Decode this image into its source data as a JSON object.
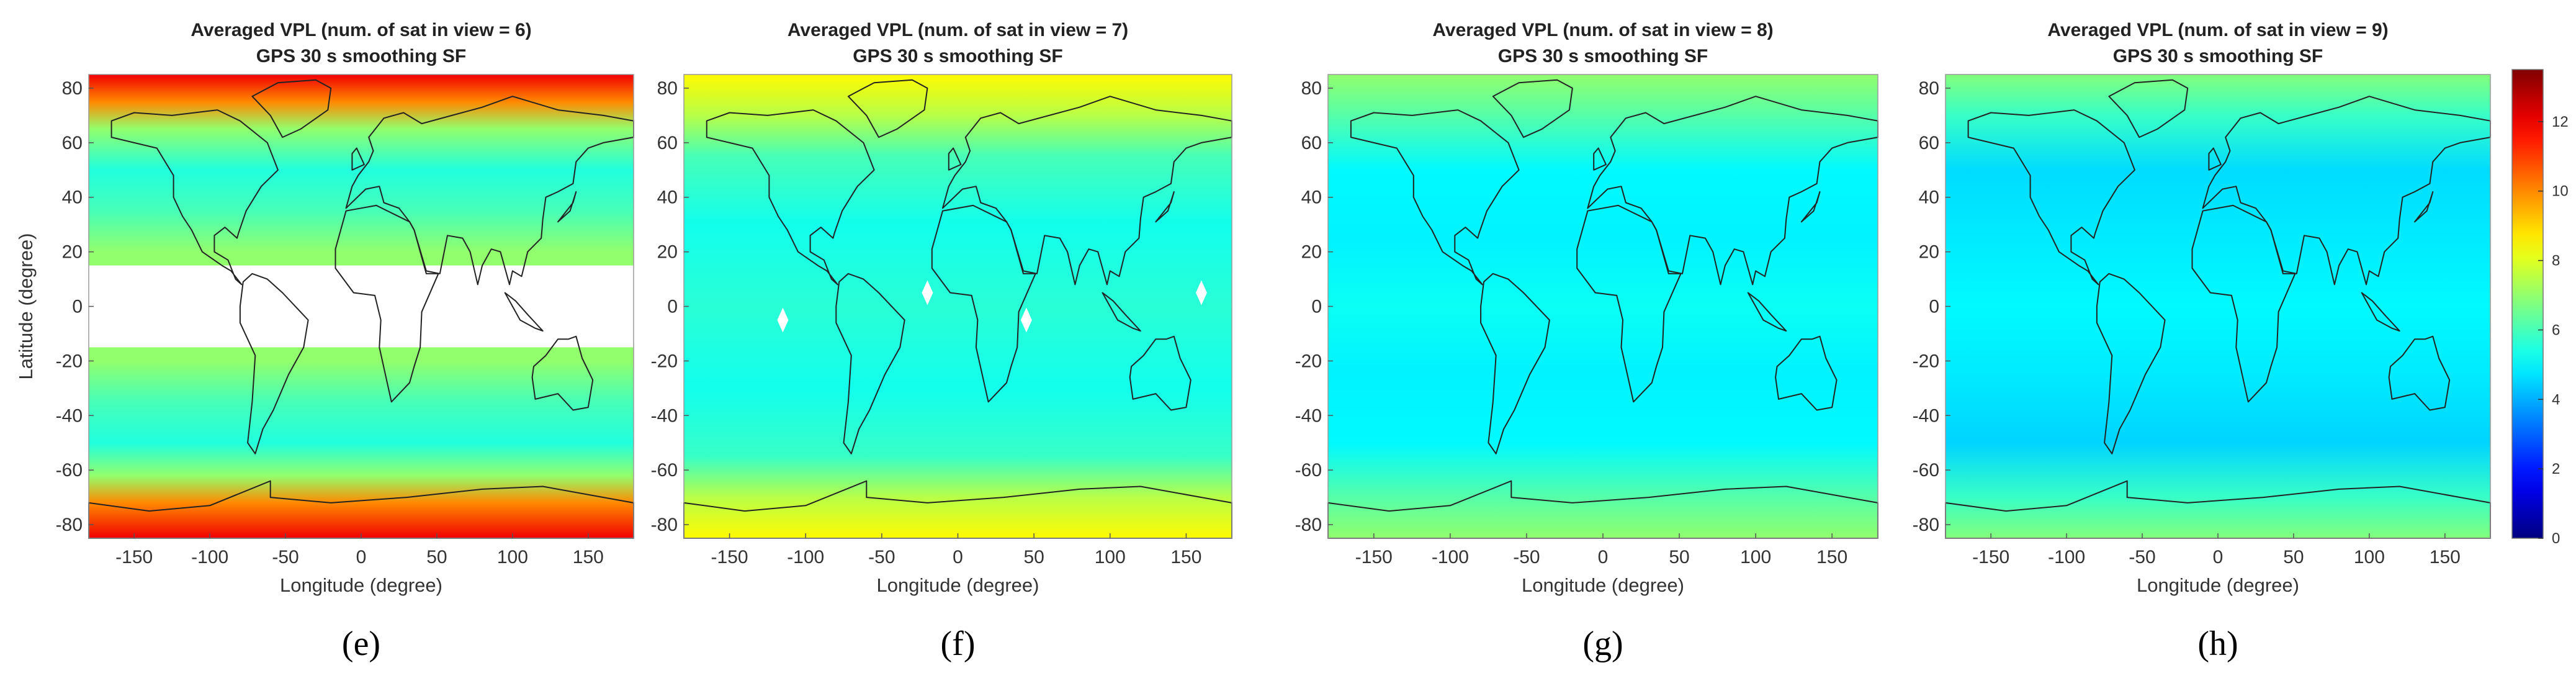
{
  "chart_data": [
    {
      "type": "heatmap",
      "panel_label": "(e)",
      "title": "Averaged VPL (num. of sat in view = 6)",
      "subtitle": "GPS 30 s smoothing SF",
      "xlabel": "Longitude (degree)",
      "ylabel": "Latitude (degree)",
      "xlim": [
        -180,
        180
      ],
      "ylim": [
        -85,
        85
      ],
      "x_ticks": [
        -150,
        -100,
        -50,
        0,
        50,
        100,
        150
      ],
      "y_ticks": [
        80,
        60,
        40,
        20,
        0,
        -20,
        -40,
        -60,
        -80
      ],
      "latitude_profile_vpl": [
        {
          "lat": 85,
          "vpl": 12
        },
        {
          "lat": 75,
          "vpl": 10
        },
        {
          "lat": 65,
          "vpl": 7
        },
        {
          "lat": 50,
          "vpl": 5.5
        },
        {
          "lat": 35,
          "vpl": 6
        },
        {
          "lat": 20,
          "vpl": 7
        },
        {
          "lat": -20,
          "vpl": 7
        },
        {
          "lat": -35,
          "vpl": 6
        },
        {
          "lat": -50,
          "vpl": 5.5
        },
        {
          "lat": -62,
          "vpl": 7
        },
        {
          "lat": -72,
          "vpl": 10
        },
        {
          "lat": -85,
          "vpl": 12
        }
      ],
      "no_data_bands": [
        [
          -15,
          15
        ]
      ]
    },
    {
      "type": "heatmap",
      "panel_label": "(f)",
      "title": "Averaged VPL (num. of sat in view = 7)",
      "subtitle": "GPS 30 s smoothing SF",
      "xlabel": "Longitude (degree)",
      "xlim": [
        -180,
        180
      ],
      "ylim": [
        -85,
        85
      ],
      "x_ticks": [
        -150,
        -100,
        -50,
        0,
        50,
        100,
        150
      ],
      "y_ticks": [
        80,
        60,
        40,
        20,
        0,
        -20,
        -40,
        -60,
        -80
      ],
      "latitude_profile_vpl": [
        {
          "lat": 85,
          "vpl": 8.5
        },
        {
          "lat": 70,
          "vpl": 7.5
        },
        {
          "lat": 55,
          "vpl": 6
        },
        {
          "lat": 30,
          "vpl": 5.3
        },
        {
          "lat": 0,
          "vpl": 5.6
        },
        {
          "lat": -30,
          "vpl": 5.3
        },
        {
          "lat": -55,
          "vpl": 5.8
        },
        {
          "lat": -70,
          "vpl": 7.5
        },
        {
          "lat": -85,
          "vpl": 8.5
        }
      ],
      "no_data_points": [
        [
          -115,
          -5
        ],
        [
          -20,
          5
        ],
        [
          45,
          -5
        ],
        [
          160,
          5
        ]
      ]
    },
    {
      "type": "heatmap",
      "panel_label": "(g)",
      "title": "Averaged VPL (num. of sat in view = 8)",
      "subtitle": "GPS 30 s smoothing SF",
      "xlabel": "Longitude (degree)",
      "xlim": [
        -180,
        180
      ],
      "ylim": [
        -85,
        85
      ],
      "x_ticks": [
        -150,
        -100,
        -50,
        0,
        50,
        100,
        150
      ],
      "y_ticks": [
        80,
        60,
        40,
        20,
        0,
        -20,
        -40,
        -60,
        -80
      ],
      "latitude_profile_vpl": [
        {
          "lat": 85,
          "vpl": 7
        },
        {
          "lat": 70,
          "vpl": 6.2
        },
        {
          "lat": 50,
          "vpl": 5
        },
        {
          "lat": 25,
          "vpl": 4.9
        },
        {
          "lat": 0,
          "vpl": 5.2
        },
        {
          "lat": -25,
          "vpl": 4.9
        },
        {
          "lat": -50,
          "vpl": 5
        },
        {
          "lat": -70,
          "vpl": 6.2
        },
        {
          "lat": -85,
          "vpl": 7
        }
      ]
    },
    {
      "type": "heatmap",
      "panel_label": "(h)",
      "title": "Averaged VPL (num. of sat in view = 9)",
      "subtitle": "GPS 30 s smoothing SF",
      "xlabel": "Longitude (degree)",
      "xlim": [
        -180,
        180
      ],
      "ylim": [
        -85,
        85
      ],
      "x_ticks": [
        -150,
        -100,
        -50,
        0,
        50,
        100,
        150
      ],
      "y_ticks": [
        80,
        60,
        40,
        20,
        0,
        -20,
        -40,
        -60,
        -80
      ],
      "latitude_profile_vpl": [
        {
          "lat": 85,
          "vpl": 6.8
        },
        {
          "lat": 70,
          "vpl": 5.8
        },
        {
          "lat": 50,
          "vpl": 4.6
        },
        {
          "lat": 25,
          "vpl": 4.8
        },
        {
          "lat": 0,
          "vpl": 5
        },
        {
          "lat": -25,
          "vpl": 4.8
        },
        {
          "lat": -50,
          "vpl": 4.5
        },
        {
          "lat": -70,
          "vpl": 5.8
        },
        {
          "lat": -85,
          "vpl": 6.8
        }
      ]
    }
  ],
  "colorbar": {
    "colormap": "jet",
    "range": [
      0,
      13.5
    ],
    "ticks": [
      0,
      2,
      4,
      6,
      8,
      10,
      12
    ]
  }
}
